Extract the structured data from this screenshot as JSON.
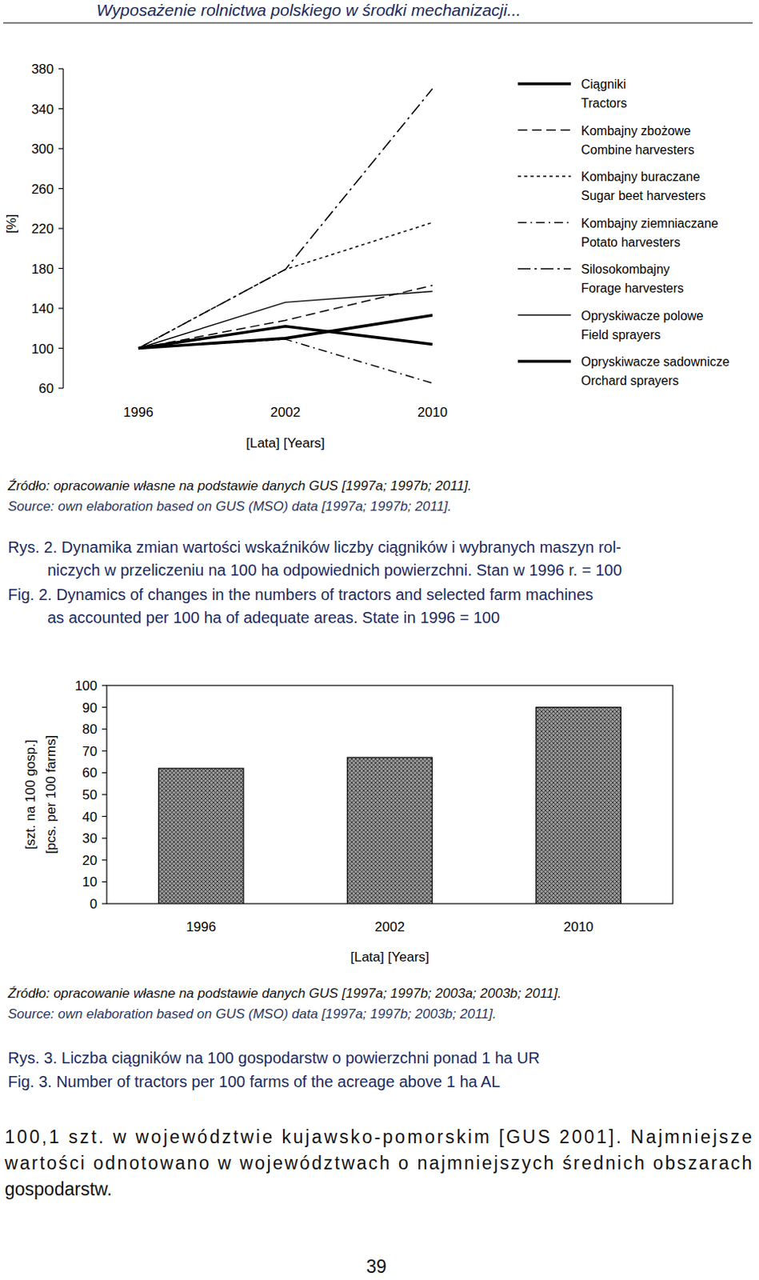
{
  "header": "Wyposażenie rolnictwa polskiego w środki mechanizacji...",
  "chart_data": [
    {
      "type": "line",
      "categories": [
        "1996",
        "2002",
        "2010"
      ],
      "xlabel": "[Lata] [Years]",
      "ylabel": "[%]",
      "ylim": [
        60,
        380
      ],
      "yticks": [
        60,
        100,
        140,
        180,
        220,
        260,
        300,
        340,
        380
      ],
      "grid": false,
      "legend": "right",
      "series": [
        {
          "name": "Ciągniki\nTractors",
          "color": "#000000",
          "line_style": "bold",
          "values": [
            100,
            110,
            133
          ]
        },
        {
          "name": "Kombajny zbożowe\nCombine harvesters",
          "color": "#000000",
          "line_style": "dashed",
          "values": [
            100,
            128,
            163
          ]
        },
        {
          "name": "Kombajny buraczane\nSugar beet harvesters",
          "color": "#000000",
          "line_style": "dotted",
          "values": [
            100,
            179,
            226
          ]
        },
        {
          "name": "Kombajny ziemniaczane\nPotato harvesters",
          "color": "#000000",
          "line_style": "dashdot",
          "values": [
            100,
            109,
            65
          ]
        },
        {
          "name": "Silosokombajny\nForage harvesters",
          "color": "#000000",
          "line_style": "longdashdot",
          "values": [
            100,
            179,
            360
          ]
        },
        {
          "name": "Opryskiwacze polowe\nField sprayers",
          "color": "#000000",
          "line_style": "solid",
          "values": [
            100,
            146,
            157
          ]
        },
        {
          "name": "Opryskiwacze sadownicze\nOrchard sprayers",
          "color": "#000000",
          "line_style": "bold",
          "values": [
            100,
            122,
            104
          ]
        }
      ]
    },
    {
      "type": "bar",
      "categories": [
        "1996",
        "2002",
        "2010"
      ],
      "values": [
        62,
        67,
        90
      ],
      "color": "#9a9a9a",
      "xlabel": "[Lata] [Years]",
      "ylabel": [
        "[szt. na 100 gosp.]",
        "[pcs. per 100 farms]"
      ],
      "ylim": [
        0,
        100
      ],
      "yticks": [
        0,
        10,
        20,
        30,
        40,
        50,
        60,
        70,
        80,
        90,
        100
      ],
      "grid": false
    }
  ],
  "figures": [
    {
      "source": [
        "Źródło: opracowanie własne na podstawie danych GUS [1997a; 1997b; 2011].",
        "Source: own elaboration based on GUS (MSO) data [1997a; 1997b; 2011]."
      ],
      "caption": [
        "Rys. 2. Dynamika zmian wartości wskaźników liczby ciągników i wybranych maszyn rol-",
        "niczych w przeliczeniu na 100 ha odpowiednich powierzchni. Stan w 1996 r. = 100"
      ],
      "caption_en": [
        "Fig. 2. Dynamics of changes in the numbers of tractors and selected farm machines",
        "as accounted per 100 ha of adequate areas. State in 1996 = 100"
      ]
    },
    {
      "source": [
        "Źródło: opracowanie własne na podstawie danych GUS [1997a; 1997b; 2003a; 2003b; 2011].",
        "Source: own elaboration based on GUS (MSO) data [1997a; 1997b; 2003b; 2011]."
      ],
      "caption": [
        "Rys. 3. Liczba ciągników na 100 gospodarstw o powierzchni ponad 1 ha UR"
      ],
      "caption_en": [
        "Fig. 3. Number of tractors per 100 farms of the acreage above 1 ha AL"
      ]
    }
  ],
  "body": [
    "100,1 szt. w województwie kujawsko-pomorskim [GUS 2001]. Najmniejsze",
    "wartości odnotowano w województwach o najmniejszych średnich obszarach",
    "gospodarstw."
  ],
  "page_number": "39"
}
